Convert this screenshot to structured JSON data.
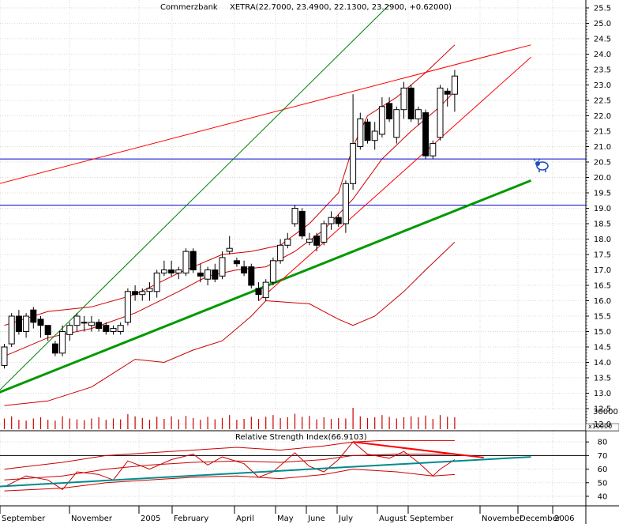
{
  "chart_data": [
    {
      "type": "candlestick",
      "title": "Commerzbank",
      "subtitle": "XETRA(22.7000, 23.4900, 22.1300, 23.2900, +0.62000)",
      "ylim": [
        12.0,
        25.5
      ],
      "y_ticks": [
        "25.5",
        "25.0",
        "24.5",
        "24.0",
        "23.5",
        "23.0",
        "22.5",
        "22.0",
        "21.5",
        "21.0",
        "20.5",
        "20.0",
        "19.5",
        "19.0",
        "18.5",
        "18.0",
        "17.5",
        "17.0",
        "16.5",
        "16.0",
        "15.5",
        "15.0",
        "14.5",
        "14.0",
        "13.5",
        "13.0",
        "12.5",
        "12.0"
      ],
      "x_labels": [
        "September",
        "November",
        "2005",
        "February",
        "April",
        "May",
        "June",
        "July",
        "August",
        "September",
        "November",
        "December",
        "2006"
      ],
      "grid": true,
      "candles": [
        {
          "o": 13.9,
          "h": 14.6,
          "l": 13.8,
          "c": 14.5
        },
        {
          "o": 14.6,
          "h": 15.6,
          "l": 14.5,
          "c": 15.5
        },
        {
          "o": 15.5,
          "h": 15.7,
          "l": 14.9,
          "c": 15.0
        },
        {
          "o": 15.0,
          "h": 15.6,
          "l": 14.8,
          "c": 15.5
        },
        {
          "o": 15.7,
          "h": 15.8,
          "l": 15.1,
          "c": 15.3
        },
        {
          "o": 15.4,
          "h": 15.5,
          "l": 14.8,
          "c": 15.2
        },
        {
          "o": 15.2,
          "h": 15.2,
          "l": 14.7,
          "c": 14.9
        },
        {
          "o": 14.6,
          "h": 14.7,
          "l": 14.2,
          "c": 14.3
        },
        {
          "o": 14.3,
          "h": 15.2,
          "l": 14.2,
          "c": 15.0
        },
        {
          "o": 14.9,
          "h": 15.3,
          "l": 14.7,
          "c": 15.2
        },
        {
          "o": 15.2,
          "h": 15.6,
          "l": 15.0,
          "c": 15.5
        },
        {
          "o": 15.3,
          "h": 15.5,
          "l": 15.0,
          "c": 15.3
        },
        {
          "o": 15.2,
          "h": 15.5,
          "l": 15.0,
          "c": 15.3
        },
        {
          "o": 15.3,
          "h": 15.4,
          "l": 15.0,
          "c": 15.1
        },
        {
          "o": 15.2,
          "h": 15.3,
          "l": 14.9,
          "c": 15.0
        },
        {
          "o": 15.0,
          "h": 15.2,
          "l": 14.9,
          "c": 15.1
        },
        {
          "o": 15.0,
          "h": 15.3,
          "l": 14.9,
          "c": 15.2
        },
        {
          "o": 15.3,
          "h": 16.4,
          "l": 15.2,
          "c": 16.3
        },
        {
          "o": 16.3,
          "h": 16.5,
          "l": 16.0,
          "c": 16.2
        },
        {
          "o": 16.2,
          "h": 16.4,
          "l": 16.0,
          "c": 16.3
        },
        {
          "o": 16.3,
          "h": 16.6,
          "l": 16.0,
          "c": 16.4
        },
        {
          "o": 16.3,
          "h": 17.0,
          "l": 16.1,
          "c": 16.9
        },
        {
          "o": 16.9,
          "h": 17.3,
          "l": 16.8,
          "c": 17.0
        },
        {
          "o": 17.0,
          "h": 17.3,
          "l": 16.8,
          "c": 16.9
        },
        {
          "o": 16.9,
          "h": 17.1,
          "l": 16.7,
          "c": 17.0
        },
        {
          "o": 16.9,
          "h": 17.7,
          "l": 16.8,
          "c": 17.6
        },
        {
          "o": 17.6,
          "h": 17.7,
          "l": 16.9,
          "c": 17.0
        },
        {
          "o": 16.9,
          "h": 17.2,
          "l": 16.6,
          "c": 16.8
        },
        {
          "o": 16.7,
          "h": 17.1,
          "l": 16.5,
          "c": 17.0
        },
        {
          "o": 17.0,
          "h": 17.2,
          "l": 16.6,
          "c": 16.7
        },
        {
          "o": 16.8,
          "h": 17.6,
          "l": 16.7,
          "c": 17.4
        },
        {
          "o": 17.6,
          "h": 18.1,
          "l": 17.5,
          "c": 17.7
        },
        {
          "o": 17.3,
          "h": 17.4,
          "l": 17.1,
          "c": 17.2
        },
        {
          "o": 17.1,
          "h": 17.3,
          "l": 16.8,
          "c": 16.9
        },
        {
          "o": 17.1,
          "h": 17.2,
          "l": 16.4,
          "c": 16.5
        },
        {
          "o": 16.4,
          "h": 16.6,
          "l": 16.0,
          "c": 16.2
        },
        {
          "o": 16.1,
          "h": 16.7,
          "l": 16.0,
          "c": 16.6
        },
        {
          "o": 16.6,
          "h": 17.4,
          "l": 16.5,
          "c": 17.3
        },
        {
          "o": 17.3,
          "h": 18.0,
          "l": 17.2,
          "c": 17.8
        },
        {
          "o": 17.8,
          "h": 18.2,
          "l": 17.7,
          "c": 18.0
        },
        {
          "o": 18.5,
          "h": 19.1,
          "l": 18.4,
          "c": 19.0
        },
        {
          "o": 18.9,
          "h": 19.0,
          "l": 18.0,
          "c": 18.1
        },
        {
          "o": 17.9,
          "h": 18.2,
          "l": 17.8,
          "c": 18.0
        },
        {
          "o": 18.1,
          "h": 18.2,
          "l": 17.6,
          "c": 17.8
        },
        {
          "o": 17.9,
          "h": 18.6,
          "l": 17.8,
          "c": 18.5
        },
        {
          "o": 18.5,
          "h": 18.9,
          "l": 18.3,
          "c": 18.7
        },
        {
          "o": 18.7,
          "h": 18.8,
          "l": 18.4,
          "c": 18.5
        },
        {
          "o": 18.5,
          "h": 19.9,
          "l": 18.2,
          "c": 19.8
        },
        {
          "o": 19.8,
          "h": 22.7,
          "l": 19.6,
          "c": 21.1
        },
        {
          "o": 21.0,
          "h": 22.1,
          "l": 20.9,
          "c": 21.9
        },
        {
          "o": 21.8,
          "h": 21.9,
          "l": 21.1,
          "c": 21.2
        },
        {
          "o": 21.2,
          "h": 21.8,
          "l": 20.9,
          "c": 21.5
        },
        {
          "o": 21.4,
          "h": 22.6,
          "l": 21.3,
          "c": 22.3
        },
        {
          "o": 22.4,
          "h": 22.6,
          "l": 21.8,
          "c": 21.9
        },
        {
          "o": 21.3,
          "h": 22.3,
          "l": 21.1,
          "c": 22.2
        },
        {
          "o": 22.2,
          "h": 23.1,
          "l": 21.9,
          "c": 22.9
        },
        {
          "o": 22.9,
          "h": 23.0,
          "l": 21.8,
          "c": 21.9
        },
        {
          "o": 21.9,
          "h": 22.3,
          "l": 21.7,
          "c": 22.2
        },
        {
          "o": 22.1,
          "h": 22.2,
          "l": 20.6,
          "c": 20.7
        },
        {
          "o": 20.7,
          "h": 21.2,
          "l": 20.6,
          "c": 21.1
        },
        {
          "o": 21.3,
          "h": 23.0,
          "l": 21.2,
          "c": 22.9
        },
        {
          "o": 22.8,
          "h": 22.9,
          "l": 22.3,
          "c": 22.7
        },
        {
          "o": 22.7,
          "h": 23.49,
          "l": 22.13,
          "c": 23.29
        }
      ],
      "volume": [
        2.5,
        3,
        2.2,
        2,
        2.5,
        2.8,
        2.2,
        2,
        3,
        2.5,
        2.3,
        2.1,
        2.5,
        2.8,
        2.2,
        2.5,
        2.3,
        3.5,
        3,
        2.6,
        2.2,
        2.9,
        2.4,
        3,
        2.3,
        3.1,
        2.6,
        2.2,
        2.9,
        2.3,
        2.6,
        3.3,
        2.2,
        2.4,
        2.9,
        2.4,
        2.9,
        3.3,
        2.6,
        2.8,
        3.6,
        2.9,
        3.1,
        2.3,
        2.8,
        2.4,
        2.6,
        2.5,
        5.0,
        3.0,
        2.6,
        2.8,
        3.3,
        2.9,
        2.5,
        2.8,
        3.0,
        2.8,
        3.2,
        2.4,
        3.3,
        2.9,
        2.8
      ],
      "volume_tick": "30000",
      "volume_unit": "x10000",
      "horizontal_lines": [
        20.6,
        19.1
      ],
      "bollinger_upper": [
        [
          0,
          15.2
        ],
        [
          6,
          15.65
        ],
        [
          12,
          15.8
        ],
        [
          18,
          16.2
        ],
        [
          24,
          16.9
        ],
        [
          30,
          17.5
        ],
        [
          34,
          17.6
        ],
        [
          38,
          17.8
        ],
        [
          42,
          18.5
        ],
        [
          46,
          19.5
        ],
        [
          48,
          21.0
        ],
        [
          50,
          22.0
        ],
        [
          54,
          22.6
        ],
        [
          58,
          23.4
        ],
        [
          62,
          24.3
        ]
      ],
      "bollinger_middle": [
        [
          0,
          14.2
        ],
        [
          6,
          14.8
        ],
        [
          12,
          15.1
        ],
        [
          18,
          15.6
        ],
        [
          24,
          16.3
        ],
        [
          28,
          16.8
        ],
        [
          32,
          17.0
        ],
        [
          36,
          17.1
        ],
        [
          40,
          17.6
        ],
        [
          44,
          18.3
        ],
        [
          48,
          19.3
        ],
        [
          52,
          20.6
        ],
        [
          56,
          21.5
        ],
        [
          60,
          22.3
        ],
        [
          62,
          22.8
        ]
      ],
      "bollinger_lower": [
        [
          0,
          12.6
        ],
        [
          6,
          12.75
        ],
        [
          12,
          13.2
        ],
        [
          18,
          14.1
        ],
        [
          22,
          14.0
        ],
        [
          26,
          14.4
        ],
        [
          30,
          14.7
        ],
        [
          34,
          15.5
        ],
        [
          36,
          16.0
        ],
        [
          42,
          15.9
        ],
        [
          46,
          15.4
        ],
        [
          48,
          15.2
        ],
        [
          51,
          15.5
        ],
        [
          55,
          16.3
        ],
        [
          58,
          17.0
        ],
        [
          62,
          17.9
        ]
      ],
      "trend_lines": [
        {
          "color": "#009900",
          "width": 3,
          "from": [
            -1.5,
            12.95
          ],
          "to": [
            72.5,
            19.9
          ]
        },
        {
          "color": "#ff0000",
          "width": 1,
          "from": [
            -1.5,
            19.75
          ],
          "to": [
            72.5,
            24.3
          ]
        },
        {
          "color": "#008000",
          "width": 1,
          "from": [
            -1.5,
            12.9
          ],
          "to": [
            53,
            25.6
          ]
        },
        {
          "color": "#ff0000",
          "width": 1,
          "from": [
            35,
            16.0
          ],
          "to": [
            72.5,
            23.9
          ]
        }
      ]
    },
    {
      "type": "line",
      "title": "Relative Strength Index(66.9103)",
      "ylim": [
        35,
        83
      ],
      "y_ticks": [
        "80",
        "70",
        "60",
        "50",
        "40"
      ],
      "horizontal_lines": [
        70
      ],
      "rsi": [
        [
          0,
          47
        ],
        [
          3,
          55
        ],
        [
          6,
          52
        ],
        [
          8,
          45
        ],
        [
          10,
          58
        ],
        [
          13,
          56
        ],
        [
          15,
          52
        ],
        [
          17,
          66
        ],
        [
          20,
          60
        ],
        [
          23,
          67
        ],
        [
          26,
          71
        ],
        [
          28,
          63
        ],
        [
          30,
          69
        ],
        [
          33,
          64
        ],
        [
          35,
          54
        ],
        [
          37,
          58
        ],
        [
          40,
          72
        ],
        [
          42,
          62
        ],
        [
          44,
          58
        ],
        [
          46,
          67
        ],
        [
          48,
          80
        ],
        [
          50,
          71
        ],
        [
          53,
          68
        ],
        [
          55,
          73
        ],
        [
          57,
          65
        ],
        [
          59,
          55
        ],
        [
          60,
          60
        ],
        [
          62,
          67
        ]
      ],
      "band_upper": [
        [
          0,
          60
        ],
        [
          8,
          65
        ],
        [
          14,
          70
        ],
        [
          20,
          72
        ],
        [
          26,
          74
        ],
        [
          32,
          76
        ],
        [
          38,
          74
        ],
        [
          44,
          77
        ],
        [
          48,
          80
        ],
        [
          52,
          81
        ],
        [
          62,
          81
        ]
      ],
      "band_middle": [
        [
          0,
          52
        ],
        [
          8,
          55
        ],
        [
          14,
          60
        ],
        [
          20,
          63
        ],
        [
          26,
          65
        ],
        [
          32,
          66
        ],
        [
          38,
          65
        ],
        [
          44,
          67
        ],
        [
          48,
          70
        ],
        [
          54,
          71
        ],
        [
          62,
          71
        ]
      ],
      "band_lower": [
        [
          0,
          44
        ],
        [
          8,
          46
        ],
        [
          14,
          50
        ],
        [
          20,
          52
        ],
        [
          26,
          54
        ],
        [
          32,
          55
        ],
        [
          38,
          53
        ],
        [
          44,
          56
        ],
        [
          48,
          60
        ],
        [
          54,
          58
        ],
        [
          59,
          55
        ],
        [
          62,
          56
        ]
      ],
      "trend_lines": [
        {
          "color": "#008b8b",
          "width": 2,
          "from": [
            -1.5,
            47
          ],
          "to": [
            72.5,
            69
          ]
        },
        {
          "color": "#ff0000",
          "width": 2,
          "from": [
            48,
            80
          ],
          "to": [
            66,
            68.5
          ]
        }
      ],
      "bands_color": "#cc0000"
    }
  ],
  "colors": {
    "price_bands": "#cc0000",
    "grid": "#d8d8d8",
    "levels": "#0000cc",
    "volume": "#cc0000"
  },
  "watermark_icon": "bull-icon"
}
